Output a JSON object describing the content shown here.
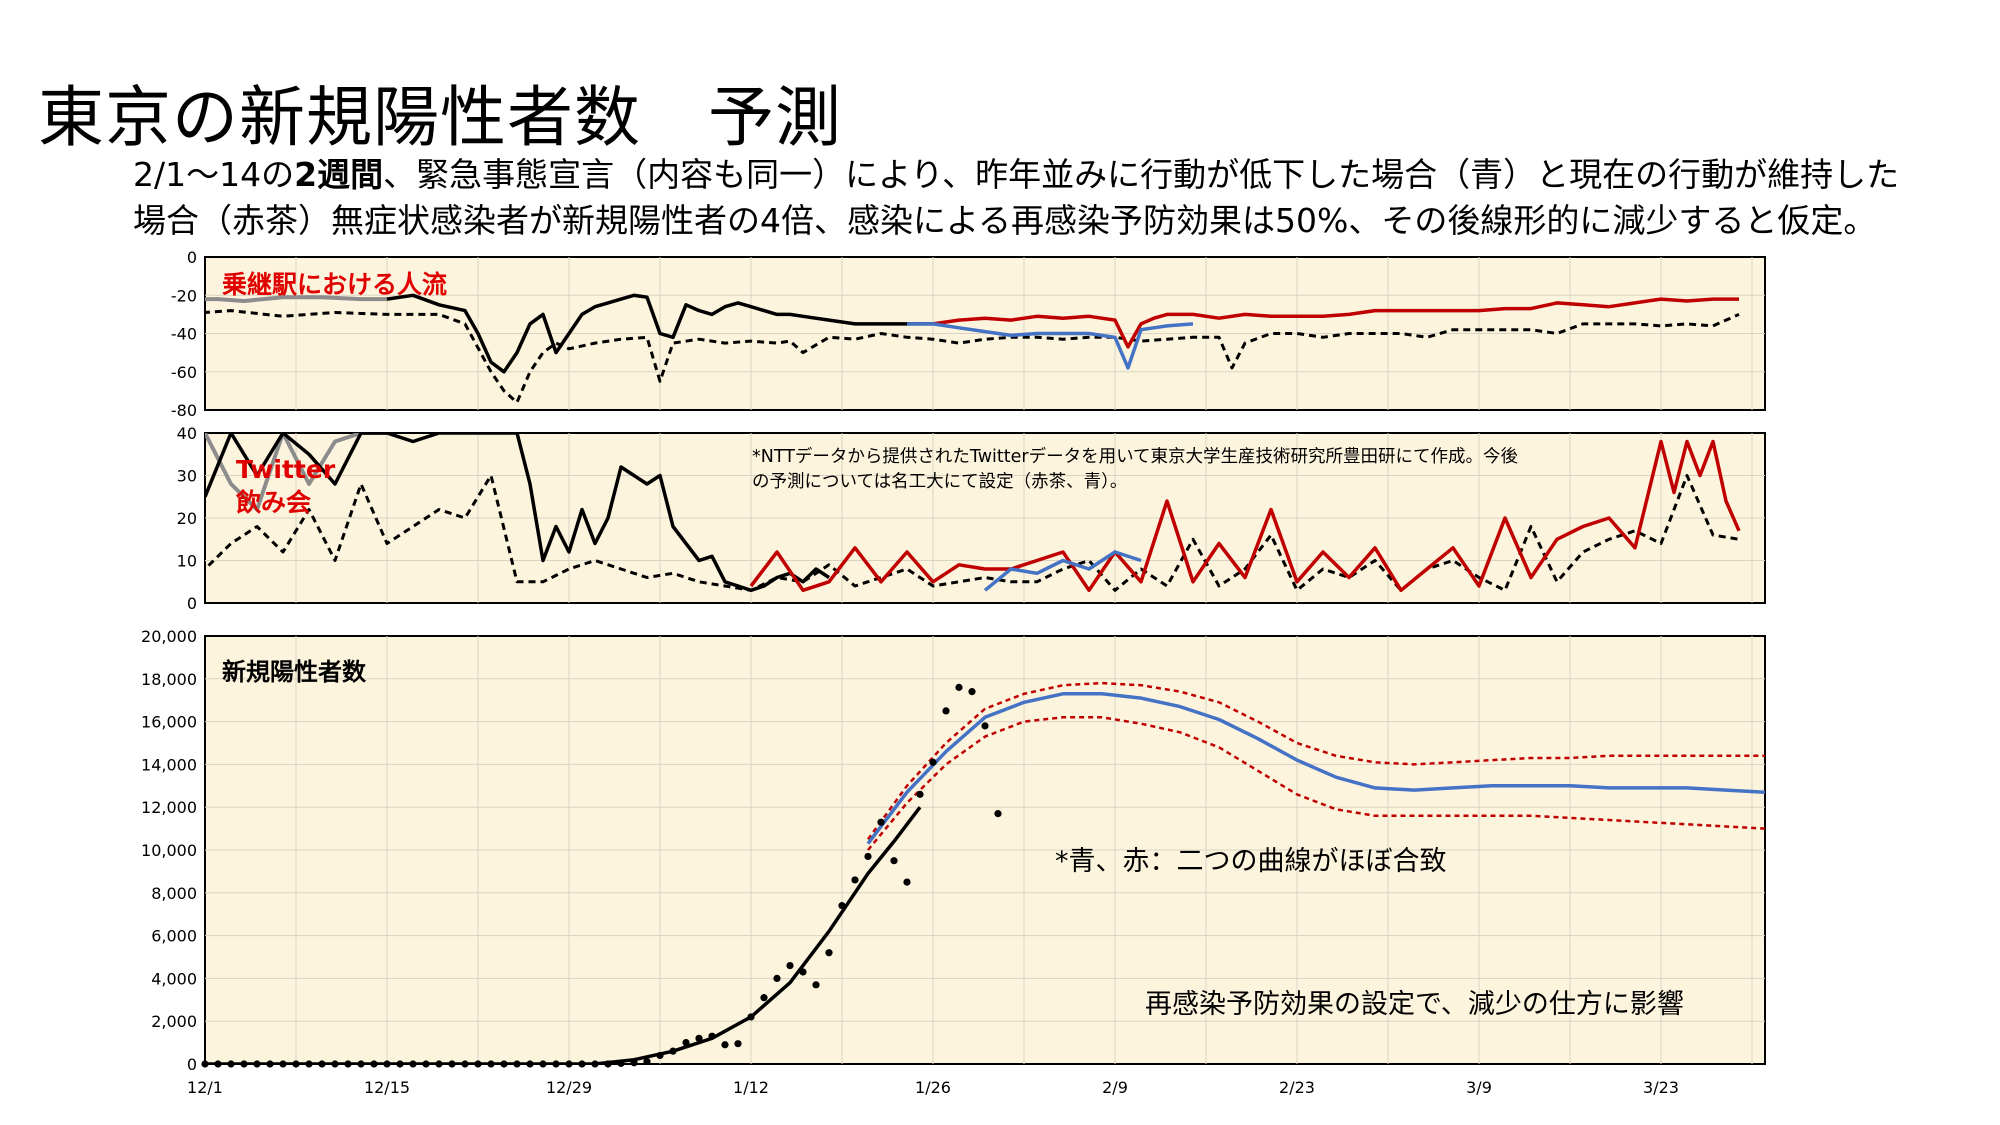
{
  "header": {
    "title": "東京の新規陽性者数　予測",
    "subtitle_line1_pre": "2/1～14の",
    "subtitle_line1_bold": "2週間",
    "subtitle_line1_post": "、緊急事態宣言（内容も同一）により、昨年並みに行動が低下した場合（青）と現在の行動が維持した",
    "subtitle_line2": "場合（赤茶）無症状感染者が新規陽性者の4倍、感染による再感染予防効果は50%、その後線形的に減少すると仮定。"
  },
  "colors": {
    "panel_bg": "#fdf4dd",
    "red": "#c00000",
    "blue": "#4472c4",
    "black": "#000000",
    "gray": "#8c8c8c",
    "label_red": "#e00000"
  },
  "chart_data": [
    {
      "type": "line",
      "panel": "top",
      "label": "乗継駅における人流",
      "ylim": [
        -80,
        0
      ],
      "yticks": [
        "0",
        "-20",
        "-40",
        "-60",
        "-80"
      ],
      "series": [
        {
          "style": "solid-gray",
          "x": [
            -2,
            1,
            3,
            6,
            9,
            12,
            14
          ],
          "y": [
            -22,
            -22,
            -23,
            -21,
            -21,
            -22,
            -22
          ]
        },
        {
          "style": "solid-black",
          "x": [
            14,
            16,
            18,
            20,
            21,
            22,
            23,
            24,
            25,
            26,
            27,
            28,
            29,
            30,
            31,
            32,
            33,
            34,
            35,
            36,
            37,
            38,
            39,
            40,
            41,
            42,
            43,
            44,
            45,
            46,
            48,
            50,
            52,
            54,
            56
          ],
          "y": [
            -22,
            -20,
            -25,
            -28,
            -40,
            -55,
            -60,
            -50,
            -35,
            -30,
            -50,
            -40,
            -30,
            -26,
            -24,
            -22,
            -20,
            -21,
            -40,
            -42,
            -25,
            -28,
            -30,
            -26,
            -24,
            -26,
            -28,
            -30,
            -30,
            -31,
            -33,
            -35,
            -35,
            -35,
            -35
          ]
        },
        {
          "style": "dashed-black",
          "x": [
            -2,
            2,
            6,
            10,
            14,
            18,
            20,
            22,
            23,
            24,
            25,
            26,
            27,
            28,
            30,
            32,
            34,
            35,
            36,
            38,
            40,
            42,
            44,
            45,
            46,
            48,
            50,
            52,
            54,
            56,
            58,
            60,
            62,
            64,
            66,
            68,
            70,
            72,
            74,
            76,
            78,
            79,
            80,
            82,
            84,
            86,
            88,
            90,
            92,
            94,
            96,
            98,
            100,
            102,
            104,
            106,
            108,
            110,
            112,
            114,
            116,
            118
          ],
          "y": [
            -30,
            -28,
            -31,
            -29,
            -30,
            -30,
            -35,
            -60,
            -70,
            -76,
            -60,
            -50,
            -45,
            -48,
            -45,
            -43,
            -42,
            -65,
            -45,
            -43,
            -45,
            -44,
            -45,
            -44,
            -50,
            -42,
            -43,
            -40,
            -42,
            -43,
            -45,
            -43,
            -42,
            -42,
            -43,
            -42,
            -42,
            -44,
            -43,
            -42,
            -42,
            -58,
            -45,
            -40,
            -40,
            -42,
            -40,
            -40,
            -40,
            -42,
            -38,
            -38,
            -38,
            -38,
            -40,
            -35,
            -35,
            -35,
            -36,
            -35,
            -36,
            -30
          ]
        },
        {
          "style": "solid-red",
          "x": [
            56,
            58,
            60,
            62,
            64,
            66,
            68,
            70,
            71,
            72,
            73,
            74,
            76,
            78,
            80,
            82,
            84,
            86,
            88,
            90,
            92,
            94,
            96,
            98,
            100,
            102,
            104,
            106,
            108,
            110,
            112,
            114,
            116,
            118
          ],
          "y": [
            -35,
            -33,
            -32,
            -33,
            -31,
            -32,
            -31,
            -33,
            -47,
            -35,
            -32,
            -30,
            -30,
            -32,
            -30,
            -31,
            -31,
            -31,
            -30,
            -28,
            -28,
            -28,
            -28,
            -28,
            -27,
            -27,
            -24,
            -25,
            -26,
            -24,
            -22,
            -23,
            -22,
            -22
          ]
        },
        {
          "style": "solid-blue",
          "x": [
            54,
            56,
            58,
            60,
            62,
            64,
            66,
            68,
            70,
            71,
            72,
            73,
            74,
            76
          ],
          "y": [
            -35,
            -35,
            -37,
            -39,
            -41,
            -40,
            -40,
            -40,
            -42,
            -58,
            -38,
            -37,
            -36,
            -35
          ]
        }
      ]
    },
    {
      "type": "line",
      "panel": "middle",
      "label_line1": "Twitter",
      "label_line2": "飲み会",
      "note_line1": "*NTTデータから提供されたTwitterデータを用いて東京大学生産技術研究所豊田研にて作成。今後",
      "note_line2": "の予測については名工大にて設定（赤茶、青）。",
      "ylim": [
        0,
        40
      ],
      "yticks": [
        "40",
        "30",
        "20",
        "10",
        "0"
      ],
      "series": [
        {
          "style": "solid-gray",
          "x": [
            -2,
            0,
            2,
            4,
            6,
            8,
            10,
            12,
            14
          ],
          "y": [
            28,
            40,
            28,
            22,
            40,
            28,
            38,
            40,
            40
          ]
        },
        {
          "style": "solid-black",
          "x": [
            0,
            2,
            4,
            6,
            8,
            10,
            12,
            14,
            16,
            18,
            20,
            22,
            24,
            25,
            26,
            27,
            28,
            29,
            30,
            31,
            32,
            33,
            34,
            35,
            36,
            37,
            38,
            39,
            40,
            41,
            42,
            43,
            44,
            45,
            46,
            47,
            48
          ],
          "y": [
            25,
            40,
            30,
            40,
            35,
            28,
            40,
            40,
            38,
            40,
            40,
            40,
            40,
            28,
            10,
            18,
            12,
            22,
            14,
            20,
            32,
            30,
            28,
            30,
            18,
            14,
            10,
            11,
            5,
            4,
            3,
            4,
            6,
            7,
            5,
            8,
            6
          ]
        },
        {
          "style": "dashed-black",
          "x": [
            -2,
            0,
            2,
            4,
            6,
            8,
            10,
            12,
            14,
            16,
            18,
            20,
            22,
            24,
            26,
            28,
            30,
            32,
            34,
            36,
            38,
            40,
            42,
            44,
            46,
            48,
            50,
            52,
            54,
            56,
            58,
            60,
            62,
            64,
            66,
            68,
            70,
            72,
            74,
            76,
            78,
            80,
            82,
            84,
            86,
            88,
            90,
            92,
            94,
            96,
            98,
            100,
            102,
            104,
            106,
            108,
            110,
            112,
            114,
            116,
            118
          ],
          "y": [
            12,
            8,
            14,
            18,
            12,
            22,
            10,
            28,
            14,
            18,
            22,
            20,
            30,
            5,
            5,
            8,
            10,
            8,
            6,
            7,
            5,
            4,
            3,
            6,
            5,
            9,
            4,
            6,
            8,
            4,
            5,
            6,
            5,
            5,
            8,
            10,
            3,
            8,
            4,
            15,
            4,
            8,
            16,
            3,
            8,
            6,
            10,
            3,
            8,
            10,
            6,
            3,
            18,
            5,
            12,
            15,
            17,
            14,
            30,
            16,
            15
          ]
        },
        {
          "style": "solid-red",
          "x": [
            42,
            44,
            46,
            48,
            50,
            52,
            54,
            56,
            58,
            60,
            62,
            64,
            66,
            68,
            70,
            72,
            74,
            76,
            78,
            80,
            82,
            84,
            86,
            88,
            90,
            92,
            94,
            96,
            98,
            100,
            102,
            104,
            106,
            108,
            110,
            112,
            113,
            114,
            115,
            116,
            117,
            118
          ],
          "y": [
            4,
            12,
            3,
            5,
            13,
            5,
            12,
            5,
            9,
            8,
            8,
            10,
            12,
            3,
            12,
            5,
            24,
            5,
            14,
            6,
            22,
            5,
            12,
            6,
            13,
            3,
            8,
            13,
            4,
            20,
            6,
            15,
            18,
            20,
            13,
            38,
            26,
            38,
            30,
            38,
            24,
            17
          ]
        },
        {
          "style": "solid-blue",
          "x": [
            60,
            62,
            64,
            66,
            68,
            70,
            72
          ],
          "y": [
            3,
            8,
            7,
            10,
            8,
            12,
            10
          ]
        }
      ]
    },
    {
      "type": "line",
      "panel": "bottom",
      "label": "新規陽性者数",
      "ylim": [
        0,
        20000
      ],
      "yticks": [
        "20,000",
        "18,000",
        "16,000",
        "14,000",
        "12,000",
        "10,000",
        "8,000",
        "6,000",
        "4,000",
        "2,000",
        "0"
      ],
      "categories": [
        "12/1",
        "12/15",
        "12/29",
        "1/12",
        "1/26",
        "2/9",
        "2/23",
        "3/9",
        "3/23"
      ],
      "annotation1": "*青、赤：二つの曲線がほぼ合致",
      "annotation2": "再感染予防効果の設定で、減少の仕方に影響",
      "observed_points": {
        "x": [
          0,
          1,
          2,
          3,
          4,
          5,
          6,
          7,
          8,
          9,
          10,
          11,
          12,
          13,
          14,
          15,
          16,
          17,
          18,
          19,
          20,
          21,
          22,
          23,
          24,
          25,
          26,
          27,
          28,
          29,
          30,
          31,
          32,
          33,
          34,
          35,
          36,
          37,
          38,
          39,
          40,
          41,
          42,
          43,
          44,
          45,
          46,
          47,
          48,
          49,
          50,
          51,
          52,
          53,
          54,
          55,
          56,
          57,
          58,
          59,
          60,
          61
        ],
        "y": [
          0,
          0,
          0,
          0,
          0,
          0,
          0,
          0,
          0,
          0,
          0,
          0,
          0,
          0,
          0,
          0,
          0,
          0,
          0,
          0,
          0,
          0,
          0,
          0,
          0,
          0,
          0,
          0,
          0,
          0,
          0,
          0,
          30,
          60,
          120,
          400,
          600,
          1000,
          1200,
          1300,
          900,
          950,
          2200,
          3100,
          4000,
          4600,
          4300,
          3700,
          5200,
          7400,
          8600,
          9700,
          11300,
          9500,
          8500,
          12600,
          14100,
          16500,
          17600,
          17400,
          15800,
          11700
        ]
      },
      "series": [
        {
          "style": "solid-black",
          "x": [
            0,
            20,
            30,
            33,
            36,
            39,
            42,
            45,
            48,
            51,
            53,
            55
          ],
          "y": [
            0,
            0,
            0,
            200,
            600,
            1200,
            2200,
            3800,
            6200,
            8900,
            10400,
            12000
          ]
        },
        {
          "style": "dashed-red",
          "x": [
            51,
            54,
            57,
            60,
            63,
            66,
            69,
            72,
            75,
            78,
            81,
            84,
            87,
            90,
            93,
            96,
            99,
            102,
            105,
            108,
            111,
            114,
            117,
            120
          ],
          "y": [
            10500,
            13000,
            15000,
            16600,
            17300,
            17700,
            17800,
            17700,
            17400,
            16900,
            16000,
            15000,
            14400,
            14100,
            14000,
            14100,
            14200,
            14300,
            14300,
            14400,
            14400,
            14400,
            14400,
            14400
          ]
        },
        {
          "style": "dashed-red",
          "x": [
            51,
            54,
            57,
            60,
            63,
            66,
            69,
            72,
            75,
            78,
            81,
            84,
            87,
            90,
            93,
            96,
            99,
            102,
            105,
            108,
            111,
            114,
            117,
            120
          ],
          "y": [
            10000,
            12200,
            14000,
            15300,
            16000,
            16200,
            16200,
            15900,
            15500,
            14800,
            13700,
            12600,
            11900,
            11600,
            11600,
            11600,
            11600,
            11600,
            11500,
            11400,
            11300,
            11200,
            11100,
            11000
          ]
        },
        {
          "style": "solid-blue",
          "x": [
            51,
            54,
            57,
            60,
            63,
            66,
            69,
            72,
            75,
            78,
            81,
            84,
            87,
            90,
            93,
            96,
            99,
            102,
            105,
            108,
            111,
            114,
            117,
            120
          ],
          "y": [
            10300,
            12700,
            14600,
            16200,
            16900,
            17300,
            17300,
            17100,
            16700,
            16100,
            15200,
            14200,
            13400,
            12900,
            12800,
            12900,
            13000,
            13000,
            13000,
            12900,
            12900,
            12900,
            12800,
            12700
          ]
        }
      ]
    }
  ]
}
